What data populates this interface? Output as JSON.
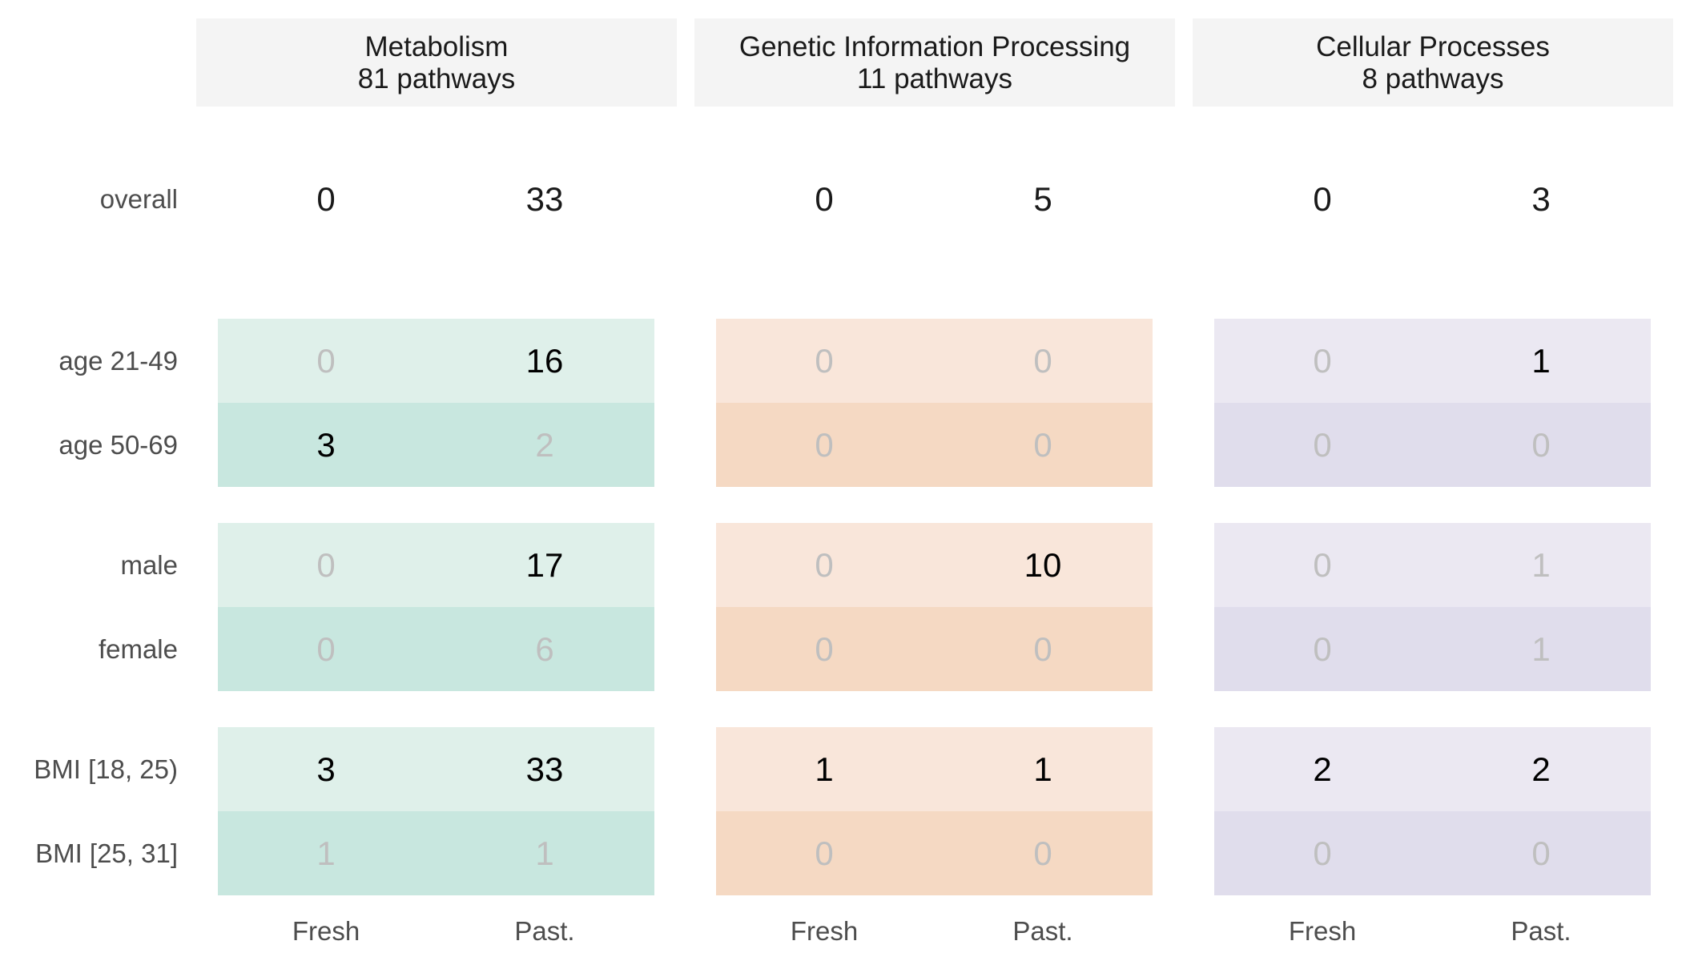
{
  "chart_data": {
    "type": "table",
    "columns": [
      "Fresh",
      "Past."
    ],
    "panels": [
      {
        "name": "Metabolism",
        "subtitle": "81 pathways",
        "color_light": "#dff0ea",
        "color_dark": "#c8e7df",
        "overall": [
          0,
          33
        ],
        "rows": [
          [
            0,
            16
          ],
          [
            3,
            2
          ],
          [
            0,
            17
          ],
          [
            0,
            6
          ],
          [
            3,
            33
          ],
          [
            1,
            1
          ]
        ],
        "emphasized": [
          [
            false,
            true
          ],
          [
            true,
            false
          ],
          [
            false,
            true
          ],
          [
            false,
            false
          ],
          [
            true,
            true
          ],
          [
            false,
            false
          ]
        ]
      },
      {
        "name": "Genetic Information Processing",
        "subtitle": "11 pathways",
        "color_light": "#f9e6da",
        "color_dark": "#f5d9c3",
        "overall": [
          0,
          5
        ],
        "rows": [
          [
            0,
            0
          ],
          [
            0,
            0
          ],
          [
            0,
            10
          ],
          [
            0,
            0
          ],
          [
            1,
            1
          ],
          [
            0,
            0
          ]
        ],
        "emphasized": [
          [
            false,
            false
          ],
          [
            false,
            false
          ],
          [
            false,
            true
          ],
          [
            false,
            false
          ],
          [
            true,
            true
          ],
          [
            false,
            false
          ]
        ]
      },
      {
        "name": "Cellular Processes",
        "subtitle": "8 pathways",
        "color_light": "#ebe8f2",
        "color_dark": "#e0ddec",
        "overall": [
          0,
          3
        ],
        "rows": [
          [
            0,
            1
          ],
          [
            0,
            0
          ],
          [
            0,
            1
          ],
          [
            0,
            1
          ],
          [
            2,
            2
          ],
          [
            0,
            0
          ]
        ],
        "emphasized": [
          [
            false,
            true
          ],
          [
            false,
            false
          ],
          [
            false,
            false
          ],
          [
            false,
            false
          ],
          [
            true,
            true
          ],
          [
            false,
            false
          ]
        ]
      }
    ],
    "overall_label": "overall",
    "row_groups": [
      [
        "age 21-49",
        "age 50-69"
      ],
      [
        "male",
        "female"
      ],
      [
        "BMI [18, 25)",
        "BMI [25, 31]"
      ]
    ],
    "colors": {
      "emphasized_text": "#000000",
      "muted_text": "#bfbfbf"
    }
  }
}
